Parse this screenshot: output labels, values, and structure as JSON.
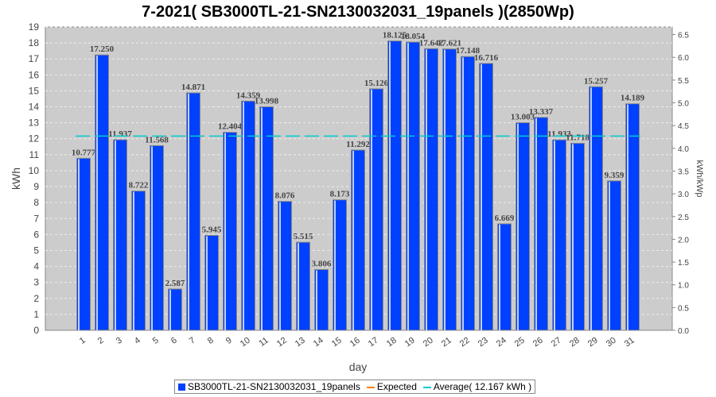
{
  "chart_data": {
    "type": "bar",
    "title": "7-2021( SB3000TL-21-SN2130032031_19panels )(2850Wp)",
    "xlabel": "day",
    "ylabel": "kWh",
    "ylabel_right": "kWh/kWp",
    "ylim": [
      0,
      19
    ],
    "ylim_right": [
      0,
      6.667
    ],
    "yticks": [
      0,
      1,
      2,
      3,
      4,
      5,
      6,
      7,
      8,
      9,
      10,
      11,
      12,
      13,
      14,
      15,
      16,
      17,
      18,
      19
    ],
    "yticks_right": [
      "0.0",
      "0.5",
      "1.0",
      "1.5",
      "2.0",
      "2.5",
      "3.0",
      "3.5",
      "4.0",
      "4.5",
      "5.0",
      "5.5",
      "6.0",
      "6.5"
    ],
    "grid": true,
    "categories": [
      "1",
      "2",
      "3",
      "4",
      "5",
      "6",
      "7",
      "8",
      "9",
      "10",
      "11",
      "12",
      "13",
      "14",
      "15",
      "16",
      "17",
      "18",
      "19",
      "20",
      "21",
      "22",
      "23",
      "24",
      "25",
      "26",
      "27",
      "28",
      "29",
      "30",
      "31"
    ],
    "series": [
      {
        "name": "SB3000TL-21-SN2130032031_19panels",
        "color": "#0040ff",
        "values": [
          10.777,
          17.25,
          11.937,
          8.722,
          11.568,
          2.587,
          14.871,
          5.945,
          12.404,
          14.359,
          13.998,
          8.076,
          5.515,
          3.806,
          8.173,
          11.292,
          15.126,
          18.125,
          18.054,
          17.642,
          17.621,
          17.148,
          16.716,
          6.669,
          13.003,
          13.337,
          11.933,
          11.718,
          15.257,
          9.359,
          14.189
        ]
      }
    ],
    "expected": {
      "name": "Expected",
      "color": "#ff8000"
    },
    "average": {
      "name": "Average( 12.167 kWh )",
      "value": 12.167,
      "color": "#00cccc"
    },
    "legend_position": "bottom"
  }
}
